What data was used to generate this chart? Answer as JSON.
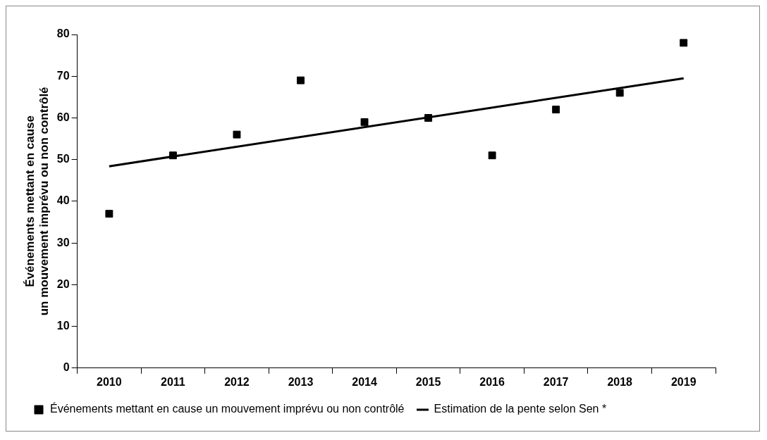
{
  "chart_data": {
    "type": "scatter",
    "ylabel": "Événements mettant en cause\nun mouvement imprévu ou non contrôlé",
    "categories": [
      "2010",
      "2011",
      "2012",
      "2013",
      "2014",
      "2015",
      "2016",
      "2017",
      "2018",
      "2019"
    ],
    "ylim": [
      0,
      80
    ],
    "yticks": [
      0,
      10,
      20,
      30,
      40,
      50,
      60,
      70,
      80
    ],
    "grid": false,
    "legend": "bottom",
    "series": [
      {
        "name": "Événements mettant en cause un mouvement imprévu ou non contrôlé",
        "marker": "square",
        "color": "#000000",
        "values": [
          37,
          51,
          56,
          69,
          59,
          60,
          51,
          62,
          66,
          78
        ]
      },
      {
        "name": "Estimation de la pente selon Sen *",
        "type": "line",
        "marker": "none",
        "line_style": "solid",
        "color": "#000000",
        "values": [
          48.4,
          null,
          null,
          null,
          null,
          null,
          null,
          null,
          null,
          69.5
        ]
      }
    ]
  }
}
